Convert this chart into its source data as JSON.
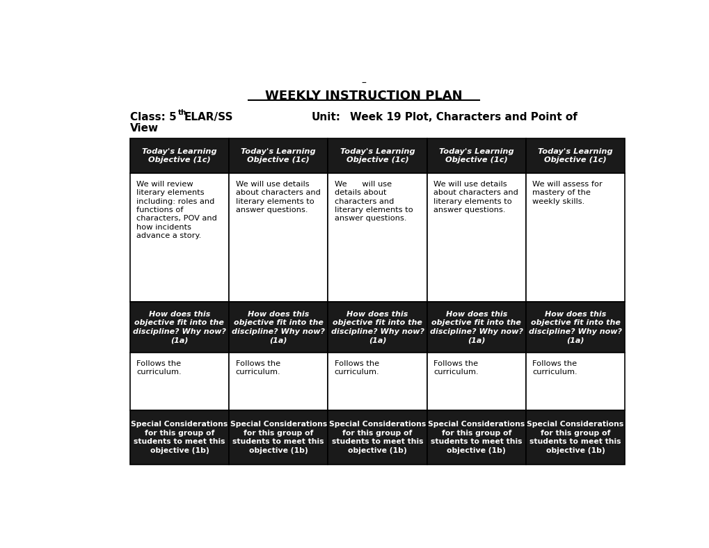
{
  "title_dash": "–",
  "title": "WEEKLY INSTRUCTION PLAN",
  "bg_color": "#ffffff",
  "header_bg": "#1a1a1a",
  "header_text_color": "#ffffff",
  "body_text_color": "#000000",
  "border_color": "#000000",
  "cols": 5,
  "col_headers": [
    "Today's Learning\nObjective (1c)",
    "Today's Learning\nObjective (1c)",
    "Today's Learning\nObjective (1c)",
    "Today's Learning\nObjective (1c)",
    "Today's Learning\nObjective (1c)"
  ],
  "row1_cells": [
    "We will review\nliterary elements\nincluding: roles and\nfunctions of\ncharacters, POV and\nhow incidents\nadvance a story.",
    "We will use details\nabout characters and\nliterary elements to\nanswer questions.",
    "We      will use\ndetails about\ncharacters and\nliterary elements to\nanswer questions.",
    "We will use details\nabout characters and\nliterary elements to\nanswer questions.",
    "We will assess for\nmastery of the\nweekly skills."
  ],
  "row2_headers": [
    "How does this\nobjective fit into the\ndiscipline? Why now?\n(1a)",
    "How does this\nobjective fit into the\ndiscipline? Why now?\n(1a)",
    "How does this\nobjective fit into the\ndiscipline? Why now?\n(1a)",
    "How does this\nobjective fit into the\ndiscipline? Why now?\n(1a)",
    "How does this\nobjective fit into the\ndiscipline? Why now?\n(1a)"
  ],
  "row3_cells": [
    "Follows the\ncurriculum.",
    "Follows the\ncurriculum.",
    "Follows the\ncurriculum.",
    "Follows the\ncurriculum.",
    "Follows the\ncurriculum."
  ],
  "row4_headers": [
    "Special Considerations\nfor this group of\nstudents to meet this\nobjective (1b)",
    "Special Considerations\nfor this group of\nstudents to meet this\nobjective (1b)",
    "Special Considerations\nfor this group of\nstudents to meet this\nobjective (1b)",
    "Special Considerations\nfor this group of\nstudents to meet this\nobjective (1b)",
    "Special Considerations\nfor this group of\nstudents to meet this\nobjective (1b)"
  ]
}
